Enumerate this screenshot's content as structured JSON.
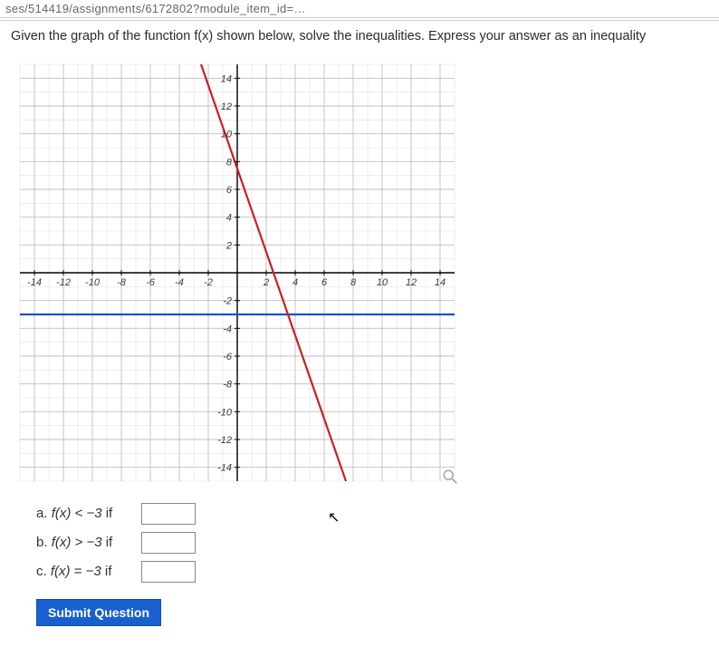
{
  "url_fragment": "ses/514419/assignments/6172802?module_item_id=…",
  "prompt": "Given the graph of the function f(x) shown below, solve the inequalities. Express your answer as an inequality",
  "graph": {
    "type": "line",
    "xlim": [
      -15,
      15
    ],
    "ylim": [
      -15,
      15
    ],
    "xtick_step": 2,
    "ytick_step": 2,
    "xticks_labeled": [
      -14,
      -12,
      -10,
      -8,
      -6,
      -4,
      -2,
      2,
      4,
      6,
      8,
      10,
      12,
      14
    ],
    "yticks_labeled": [
      -14,
      -12,
      -10,
      -8,
      -6,
      -4,
      -2,
      2,
      4,
      6,
      8,
      10,
      12,
      14
    ],
    "minor_grid_step": 1,
    "background_color": "#ffffff",
    "major_grid_color": "#bfbfbf",
    "minor_grid_color": "#e2e2e2",
    "axis_color": "#000000",
    "tick_label_fontsize": 11,
    "tick_label_color": "#3a3a3a",
    "red_line": {
      "color": "#cc1f1f",
      "width": 2.2,
      "p1": {
        "x": -2.5,
        "y": 15
      },
      "p2": {
        "x": 7.5,
        "y": -15
      }
    },
    "blue_line": {
      "color": "#1a4fe0",
      "width": 2.2,
      "y": -3,
      "x1": -15,
      "x2": 15
    }
  },
  "questions": {
    "a": {
      "letter": "a.",
      "lhs": "f(x) < −3",
      "conn": "if"
    },
    "b": {
      "letter": "b.",
      "lhs": "f(x) > −3",
      "conn": "if"
    },
    "c": {
      "letter": "c.",
      "lhs": "f(x) = −3",
      "conn": "if"
    }
  },
  "buttons": {
    "submit": "Submit Question"
  },
  "icons": {
    "zoom": "magnifier-icon"
  }
}
